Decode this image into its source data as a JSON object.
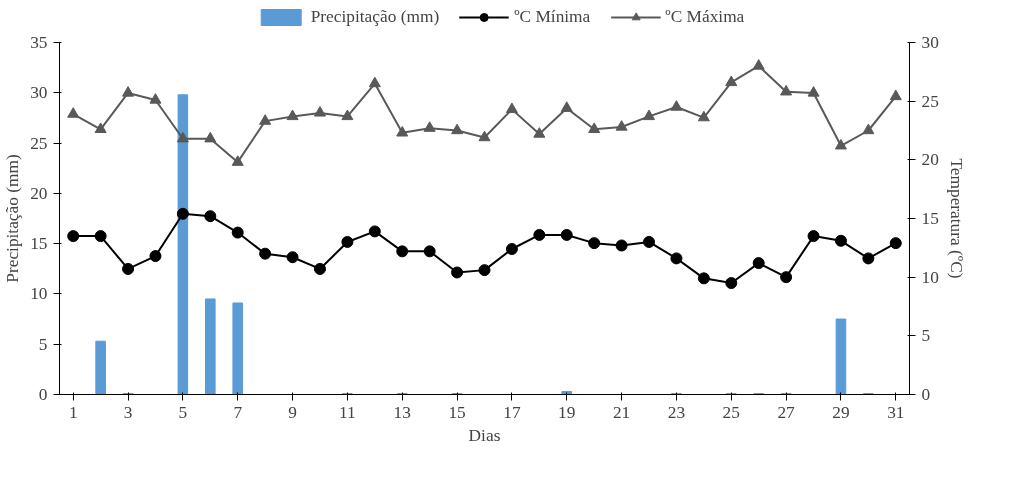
{
  "chart_data": {
    "type": "bar",
    "xlabel": "Dias",
    "ylabel": "Precipitação (mm)",
    "y2label": "Temperatura (ºC)",
    "x": [
      1,
      2,
      3,
      4,
      5,
      6,
      7,
      8,
      9,
      10,
      11,
      12,
      13,
      14,
      15,
      16,
      17,
      18,
      19,
      20,
      21,
      22,
      23,
      24,
      25,
      26,
      27,
      28,
      29,
      30,
      31
    ],
    "xlim": [
      0.5,
      31.5
    ],
    "xticks": [
      1,
      3,
      5,
      7,
      9,
      11,
      13,
      15,
      17,
      19,
      21,
      23,
      25,
      27,
      29,
      31
    ],
    "ylim": [
      0,
      35
    ],
    "yticks": [
      0,
      5,
      10,
      15,
      20,
      25,
      30,
      35
    ],
    "y2lim": [
      0,
      30
    ],
    "y2ticks": [
      0,
      5,
      10,
      15,
      20,
      25,
      30
    ],
    "grid": false,
    "legend": "top",
    "series": [
      {
        "name": "Precipitação (mm)",
        "color": "#5b9bd5",
        "values": [
          0,
          5.3,
          0.1,
          0,
          29.8,
          9.5,
          9.1,
          0,
          0,
          0,
          0.1,
          0,
          0.1,
          0,
          0.1,
          0,
          0,
          0,
          0.3,
          0,
          0,
          0,
          0.1,
          0,
          0.1,
          0.1,
          0.1,
          0,
          7.5,
          0.1,
          0
        ]
      },
      {
        "name": "ºC Mínima",
        "type": "line",
        "axis": "y2",
        "marker": "circle",
        "color": "#000000",
        "values": [
          13.5,
          13.5,
          10.7,
          11.8,
          15.4,
          15.2,
          13.8,
          12.0,
          11.7,
          10.7,
          13.0,
          13.9,
          12.2,
          12.2,
          10.4,
          10.6,
          12.4,
          13.6,
          13.6,
          12.9,
          12.7,
          13.0,
          11.6,
          9.9,
          9.5,
          11.2,
          10.0,
          13.5,
          13.1,
          11.6,
          12.9
        ]
      },
      {
        "name": "ºC Máxima",
        "type": "line",
        "axis": "y2",
        "marker": "triangle",
        "color": "#595959",
        "values": [
          23.9,
          22.6,
          25.7,
          25.1,
          21.8,
          21.8,
          19.8,
          23.3,
          23.7,
          24.0,
          23.7,
          26.5,
          22.3,
          22.7,
          22.5,
          21.9,
          24.3,
          22.2,
          24.4,
          22.6,
          22.8,
          23.7,
          24.5,
          23.6,
          26.6,
          28.0,
          25.8,
          25.7,
          21.2,
          22.5,
          25.4
        ]
      }
    ]
  }
}
